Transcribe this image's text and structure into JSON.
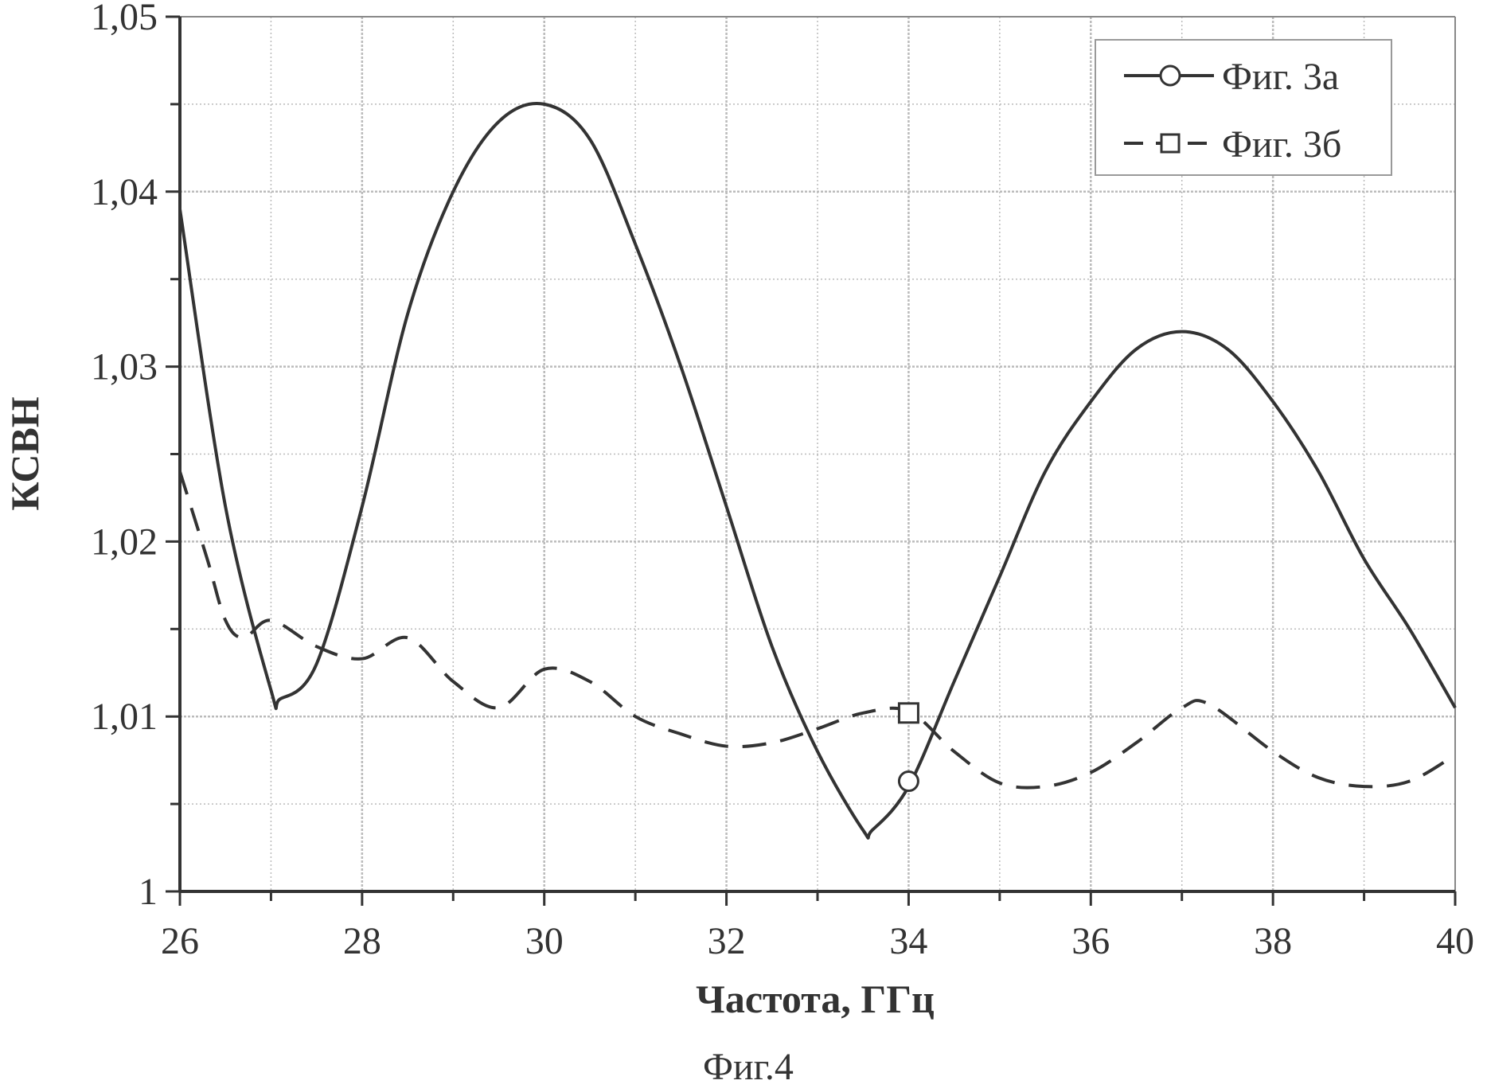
{
  "chart_data": {
    "type": "line",
    "title": "",
    "caption": "Фиг.4",
    "xlabel": "Частота, ГГц",
    "ylabel": "КСВН",
    "xlim": [
      26,
      40
    ],
    "ylim": [
      1,
      1.05
    ],
    "xticks": [
      "26",
      "28",
      "30",
      "32",
      "34",
      "36",
      "38",
      "40"
    ],
    "yticks": [
      "1",
      "1,01",
      "1,02",
      "1,03",
      "1,04",
      "1,05"
    ],
    "grid": true,
    "legend_position": "top-right",
    "series": [
      {
        "name": "Фиг. 3а",
        "style": "solid",
        "marker": "circle",
        "marker_x": 34,
        "marker_y": 1.0063,
        "x": [
          26,
          26.5,
          27,
          27.1,
          27.5,
          28,
          28.5,
          29,
          29.5,
          30,
          30.5,
          31,
          31.5,
          32,
          32.5,
          33,
          33.5,
          33.6,
          34,
          34.5,
          35,
          35.5,
          36,
          36.5,
          37,
          37.5,
          38,
          38.5,
          39,
          39.5,
          40
        ],
        "y": [
          1.039,
          1.022,
          1.0115,
          1.011,
          1.013,
          1.022,
          1.033,
          1.04,
          1.044,
          1.045,
          1.043,
          1.037,
          1.03,
          1.022,
          1.014,
          1.008,
          1.0035,
          1.0035,
          1.006,
          1.012,
          1.018,
          1.024,
          1.028,
          1.031,
          1.032,
          1.031,
          1.028,
          1.024,
          1.019,
          1.015,
          1.0105
        ]
      },
      {
        "name": "Фиг. 3б",
        "style": "dashed",
        "marker": "square",
        "marker_x": 34,
        "marker_y": 1.0102,
        "x": [
          26,
          26.3,
          26.5,
          26.7,
          27,
          27.5,
          28,
          28.5,
          29,
          29.5,
          30,
          30.5,
          31,
          31.5,
          32,
          32.5,
          33,
          33.5,
          34,
          34.5,
          35,
          35.5,
          36,
          36.5,
          37,
          37.3,
          38,
          38.5,
          39,
          39.5,
          40
        ],
        "y": [
          1.024,
          1.019,
          1.0155,
          1.0145,
          1.0155,
          1.014,
          1.0133,
          1.0145,
          1.012,
          1.0105,
          1.0127,
          1.012,
          1.01,
          1.009,
          1.0083,
          1.0085,
          1.0093,
          1.0102,
          1.0103,
          1.008,
          1.0062,
          1.006,
          1.0068,
          1.0085,
          1.0105,
          1.0107,
          1.008,
          1.0065,
          1.006,
          1.0063,
          1.0078
        ]
      }
    ]
  },
  "colors": {
    "line": "#333333",
    "grid": "#c8c8c8"
  }
}
